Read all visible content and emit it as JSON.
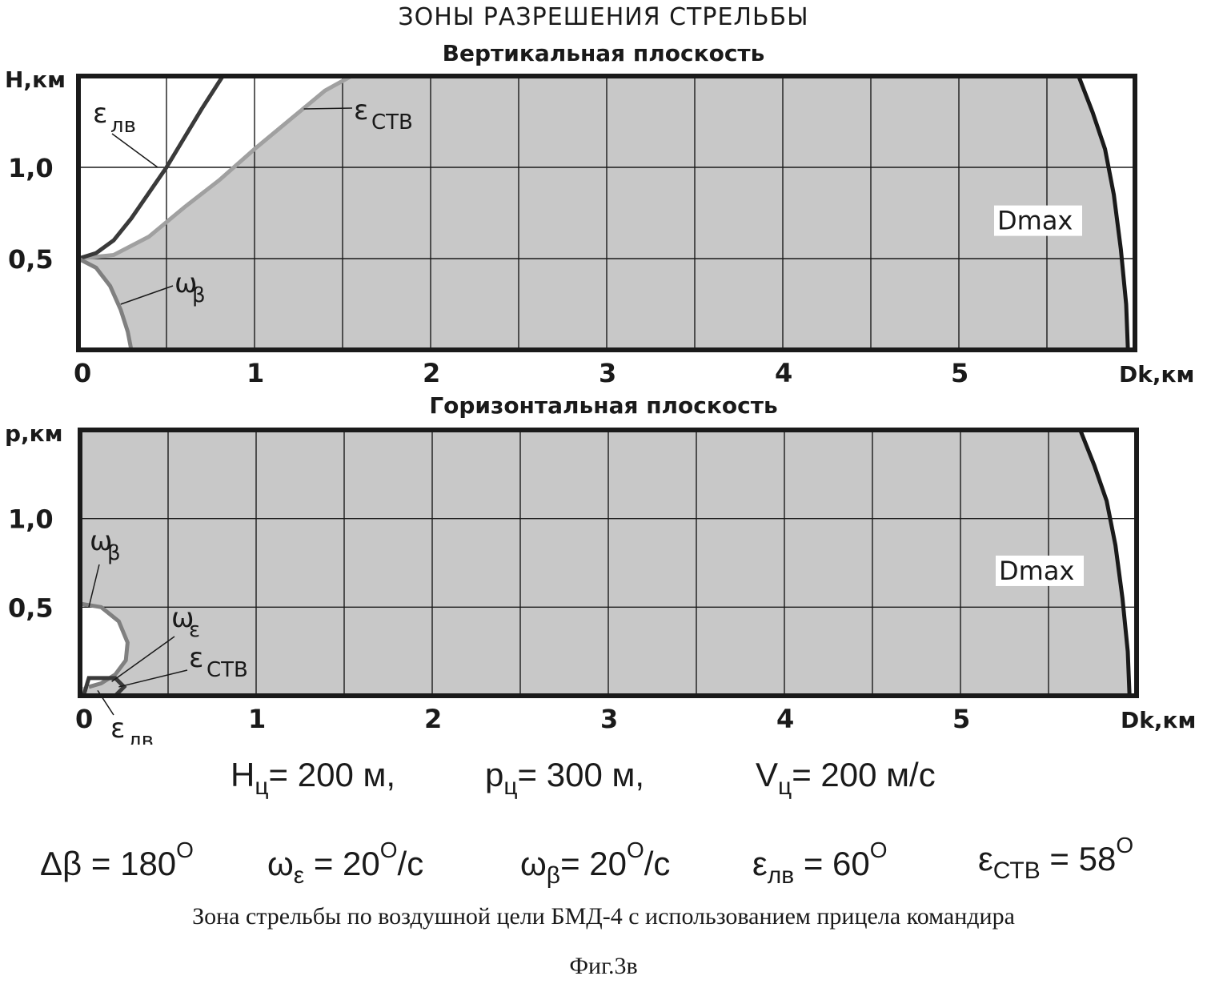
{
  "title": "ЗОНЫ РАЗРЕШЕНИЯ СТРЕЛЬБЫ",
  "chart_data": [
    {
      "type": "area",
      "title": "Вертикальная плоскость",
      "ylabel": "H,км",
      "xlabel": "Dk,км",
      "xlim": [
        0,
        6
      ],
      "ylim": [
        0,
        1.5
      ],
      "x_ticks": [
        "0",
        "1",
        "2",
        "3",
        "4",
        "5"
      ],
      "y_ticks": [
        "0,5",
        "1,0"
      ],
      "grid": true,
      "colors": {
        "zone": "#c8c8c8",
        "eps_lv": "#3a3a3a",
        "eps_stv": "#a0a0a0",
        "omega": "#808080",
        "frame": "#1a1a1a"
      },
      "curves": {
        "eps_lv": {
          "label": "ε",
          "sub": "лв",
          "x": [
            0.0,
            0.1,
            0.2,
            0.3,
            0.4,
            0.5,
            0.6,
            0.7,
            0.82
          ],
          "y": [
            0.5,
            0.53,
            0.6,
            0.72,
            0.86,
            1.0,
            1.16,
            1.32,
            1.5
          ]
        },
        "eps_stv": {
          "label": "ε",
          "sub": "СТВ",
          "x": [
            0.0,
            0.2,
            0.4,
            0.6,
            0.8,
            1.0,
            1.2,
            1.4,
            1.55
          ],
          "y": [
            0.5,
            0.52,
            0.62,
            0.78,
            0.93,
            1.1,
            1.26,
            1.42,
            1.5
          ]
        },
        "omega_beta": {
          "label": "ω",
          "sub": "β",
          "x": [
            0.0,
            0.1,
            0.18,
            0.24,
            0.28,
            0.3
          ],
          "y": [
            0.5,
            0.45,
            0.35,
            0.22,
            0.1,
            0.0
          ]
        },
        "dmax": {
          "label": "Dmax",
          "x": [
            5.68,
            5.76,
            5.83,
            5.88,
            5.92,
            5.95,
            5.96
          ],
          "y": [
            1.5,
            1.3,
            1.1,
            0.85,
            0.55,
            0.25,
            0.0
          ]
        }
      }
    },
    {
      "type": "area",
      "title": "Горизонтальная плоскость",
      "ylabel": "p,км",
      "xlabel": "Dk,км",
      "xlim": [
        0,
        6
      ],
      "ylim": [
        0,
        1.5
      ],
      "x_ticks": [
        "0",
        "1",
        "2",
        "3",
        "4",
        "5"
      ],
      "y_ticks": [
        "0,5",
        "1,0"
      ],
      "grid": true,
      "colors": {
        "zone": "#c8c8c8",
        "eps_lv": "#3a3a3a",
        "eps_stv": "#a0a0a0",
        "omega": "#808080",
        "frame": "#1a1a1a"
      },
      "curves": {
        "omega_beta": {
          "label": "ω",
          "sub": "β",
          "x": [
            0.0,
            0.12,
            0.22,
            0.27,
            0.26,
            0.2,
            0.12,
            0.05
          ],
          "y": [
            0.52,
            0.5,
            0.42,
            0.3,
            0.2,
            0.12,
            0.07,
            0.05
          ]
        },
        "omega_eps": {
          "label": "ω",
          "sub": "ε"
        },
        "eps_stv": {
          "label": "ε",
          "sub": "СТВ"
        },
        "eps_lv": {
          "label": "ε",
          "sub": "лв",
          "x": [
            0.02,
            0.05,
            0.2,
            0.25,
            0.2,
            0.05,
            0.02
          ],
          "y": [
            0.0,
            0.1,
            0.1,
            0.05,
            0.0,
            0.0,
            0.0
          ]
        },
        "dmax": {
          "label": "Dmax",
          "x": [
            5.68,
            5.76,
            5.83,
            5.88,
            5.92,
            5.95,
            5.96
          ],
          "y": [
            1.5,
            1.3,
            1.1,
            0.85,
            0.55,
            0.25,
            0.0
          ]
        }
      }
    }
  ],
  "formulas": {
    "line1": {
      "h": {
        "sym": "H",
        "sub": "ц",
        "val": "= 200 м,"
      },
      "p": {
        "sym": "p",
        "sub": "ц",
        "val": "= 300 м,"
      },
      "v": {
        "sym": "V",
        "sub": "ц",
        "val": "= 200 м/с"
      }
    },
    "line2": {
      "dbeta": {
        "sym": "Δβ",
        "val": " = 180",
        "deg": "O"
      },
      "weps": {
        "sym": "ω",
        "sub": "ε",
        "val": " = 20",
        "deg": "O",
        "unit": "/c"
      },
      "wbeta": {
        "sym": "ω",
        "sub": "β",
        "val": "= 20",
        "deg": "O",
        "unit": "/c"
      },
      "elv": {
        "sym": "ε",
        "sub": "лв",
        "val": " = 60",
        "deg": "O"
      },
      "estv": {
        "sym": "ε",
        "sub": "СТВ",
        "val": " = 58",
        "deg": "O"
      }
    }
  },
  "caption": "Зона стрельбы по воздушной цели БМД-4 с использованием прицела командира",
  "figure_label": "Фиг.3в"
}
